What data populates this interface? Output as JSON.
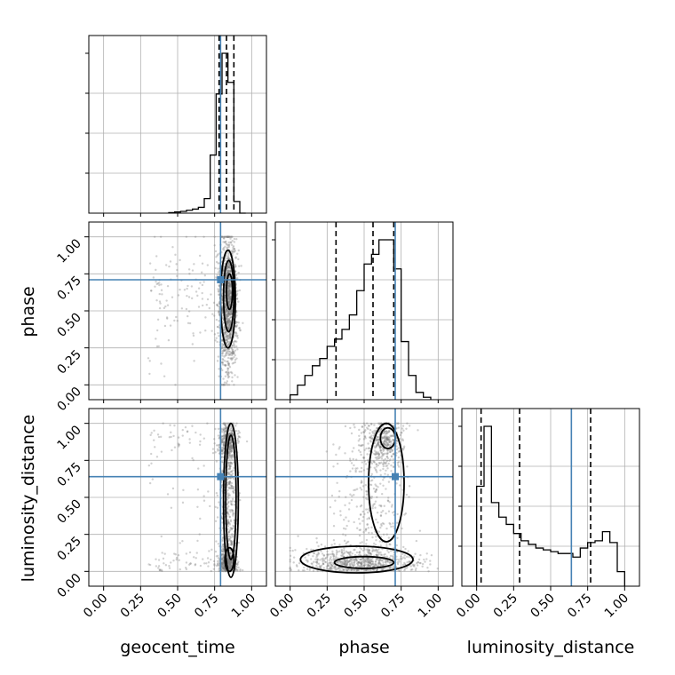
{
  "chart_data": {
    "type": "corner",
    "parameters": [
      "geocent_time",
      "phase",
      "luminosity_distance"
    ],
    "axis_labels": {
      "x": [
        "geocent_time",
        "phase",
        "luminosity_distance"
      ],
      "y": [
        "phase",
        "luminosity_distance"
      ]
    },
    "tick_labels": [
      "0.00",
      "0.25",
      "0.50",
      "0.75",
      "1.00"
    ],
    "range": [
      -0.1,
      1.1
    ],
    "grid": true,
    "truths": [
      0.79,
      0.71,
      0.64
    ],
    "truth_color": "#4682b4",
    "histograms": [
      {
        "parameter": "geocent_time",
        "bin_edges": [
          0.44,
          0.48,
          0.52,
          0.56,
          0.6,
          0.64,
          0.68,
          0.72,
          0.76,
          0.8,
          0.84,
          0.88,
          0.92,
          0.96
        ],
        "counts": [
          0.002,
          0.004,
          0.006,
          0.01,
          0.014,
          0.02,
          0.05,
          0.2,
          0.41,
          0.55,
          0.45,
          0.04,
          0
        ],
        "quantiles": [
          0.78,
          0.83,
          0.88
        ]
      },
      {
        "parameter": "phase",
        "bin_edges": [
          0.0,
          0.05,
          0.1,
          0.15,
          0.2,
          0.25,
          0.3,
          0.35,
          0.4,
          0.45,
          0.5,
          0.55,
          0.6,
          0.65,
          0.7,
          0.75,
          0.8,
          0.85,
          0.9,
          0.95
        ],
        "counts": [
          0.02,
          0.06,
          0.1,
          0.14,
          0.17,
          0.22,
          0.25,
          0.29,
          0.35,
          0.45,
          0.56,
          0.6,
          0.66,
          0.66,
          0.54,
          0.24,
          0.1,
          0.03,
          0.01
        ],
        "quantiles": [
          0.31,
          0.56,
          0.7
        ]
      },
      {
        "parameter": "luminosity_distance",
        "bin_edges": [
          0.0,
          0.05,
          0.1,
          0.15,
          0.2,
          0.25,
          0.3,
          0.35,
          0.4,
          0.45,
          0.5,
          0.55,
          0.6,
          0.65,
          0.7,
          0.75,
          0.8,
          0.85,
          0.9,
          0.95,
          1.0
        ],
        "counts": [
          0.55,
          0.88,
          0.46,
          0.38,
          0.34,
          0.29,
          0.25,
          0.23,
          0.21,
          0.2,
          0.19,
          0.18,
          0.18,
          0.16,
          0.21,
          0.24,
          0.25,
          0.3,
          0.24,
          0.08
        ],
        "quantiles": [
          0.03,
          0.29,
          0.77
        ]
      }
    ],
    "scatter_panels": [
      {
        "x": "geocent_time",
        "y": "phase",
        "samples_center": [
          0.84,
          0.55
        ],
        "note": "concentrated near geocent_time 0.8-0.9"
      },
      {
        "x": "geocent_time",
        "y": "luminosity_distance",
        "samples_center": [
          0.84,
          0.5
        ]
      },
      {
        "x": "phase",
        "y": "luminosity_distance",
        "samples_center": [
          0.55,
          0.2
        ]
      }
    ]
  }
}
